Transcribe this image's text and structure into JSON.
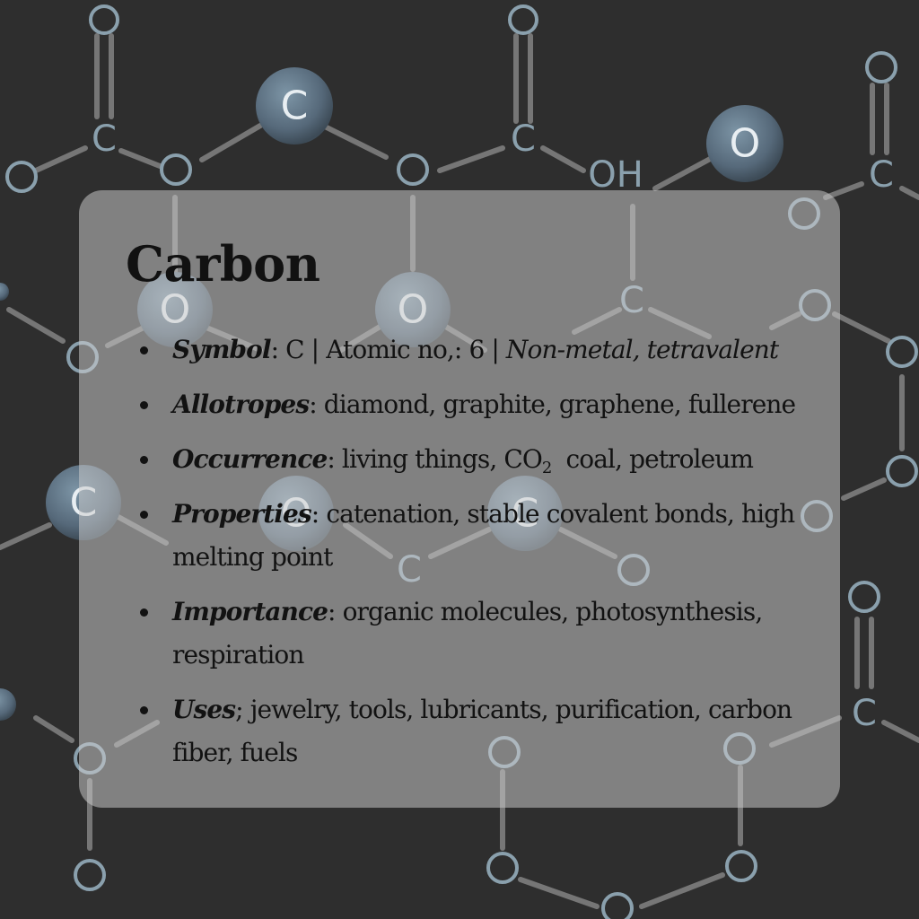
{
  "title": "Carbon",
  "facts": [
    {
      "key": "Symbol",
      "value": ": C | Atomic no,: 6 | ",
      "extra": "Non-metal, tetravalent"
    },
    {
      "key": "Allotropes",
      "value": ": diamond, graphite, graphene, fullerene"
    },
    {
      "key": "Occurrence",
      "value": ": living things, CO",
      "sub": "2",
      "value2": "  coal, petroleum"
    },
    {
      "key": "Properties",
      "value": ": catenation, stable covalent bonds, high melting point"
    },
    {
      "key": "Importance",
      "value": ": organic molecules, photosynthesis, respiration"
    },
    {
      "key": "Uses",
      "value": "; jewelry, tools, lubricants, purification, carbon fiber, fuels"
    }
  ],
  "background": {
    "atoms": [
      "O",
      "C",
      "O",
      "C",
      "O",
      "C",
      "O",
      "OH",
      "O",
      "O",
      "C",
      "O",
      "C",
      "O",
      "O",
      "O",
      "C",
      "O",
      "O",
      "C",
      "O",
      "O",
      "O"
    ],
    "balls": [
      "C",
      "O",
      "O",
      "O",
      "C",
      "O",
      "C"
    ]
  },
  "colors": {
    "background": "#2e2e2e",
    "card": "#cdcdcd",
    "atom": "#8aa0ad",
    "ball": "#5c7384",
    "text": "#121212"
  }
}
